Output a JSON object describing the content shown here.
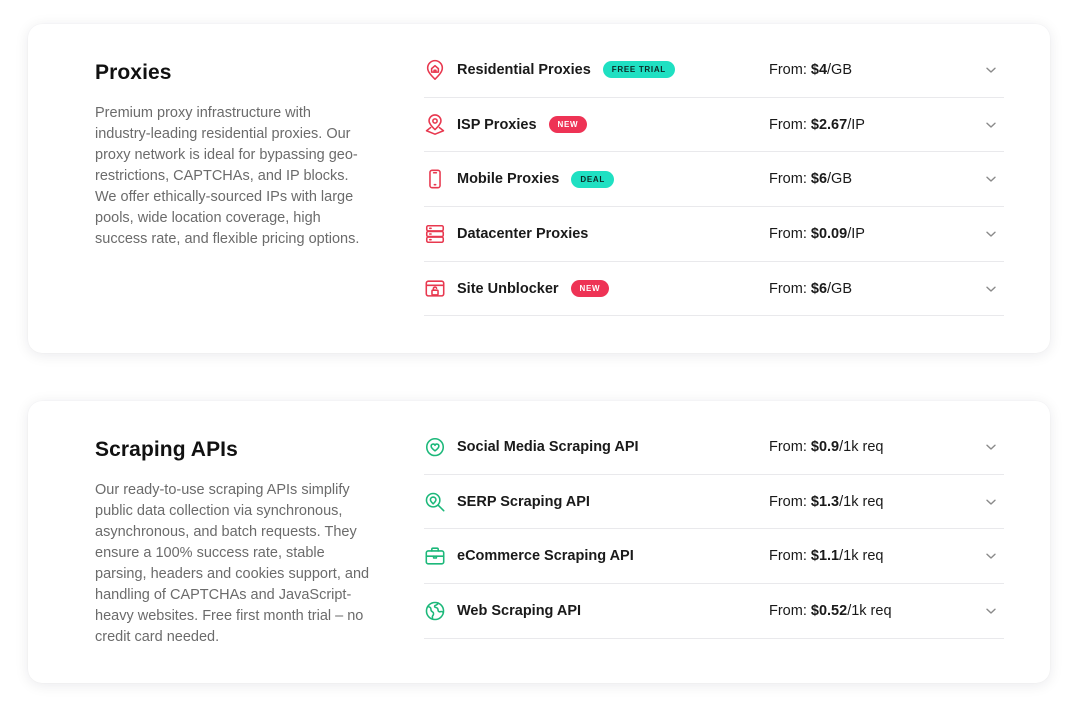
{
  "colors": {
    "proxy_icon": "#e8384f",
    "api_icon": "#1cb87a",
    "badge_teal": "#1fe0c2",
    "badge_red": "#ee3355",
    "chevron": "#8a8a8a"
  },
  "proxies": {
    "title": "Proxies",
    "description": "Premium proxy infrastructure with industry-leading residential proxies. Our proxy network is ideal for bypassing geo-restrictions, CAPTCHAs, and IP blocks. We offer ethically-sourced IPs with large pools, wide location coverage, high success rate, and flexible pricing options.",
    "items": [
      {
        "name": "Residential Proxies",
        "icon": "home-pin-icon",
        "badge": "FREE TRIAL",
        "badge_color": "teal",
        "price_prefix": "From: ",
        "price_amount": "$4",
        "price_unit": "/GB"
      },
      {
        "name": "ISP Proxies",
        "icon": "location-pin-icon",
        "badge": "NEW",
        "badge_color": "red",
        "price_prefix": "From: ",
        "price_amount": "$2.67",
        "price_unit": "/IP"
      },
      {
        "name": "Mobile Proxies",
        "icon": "mobile-phone-icon",
        "badge": "DEAL",
        "badge_color": "teal",
        "price_prefix": "From: ",
        "price_amount": "$6",
        "price_unit": "/GB"
      },
      {
        "name": "Datacenter Proxies",
        "icon": "server-stack-icon",
        "badge": "",
        "badge_color": "",
        "price_prefix": "From: ",
        "price_amount": "$0.09",
        "price_unit": "/IP"
      },
      {
        "name": "Site Unblocker",
        "icon": "unlock-browser-icon",
        "badge": "NEW",
        "badge_color": "red",
        "price_prefix": "From: ",
        "price_amount": "$6",
        "price_unit": "/GB"
      }
    ]
  },
  "apis": {
    "title": "Scraping APIs",
    "description": "Our ready-to-use scraping APIs simplify public data collection via synchronous, asynchronous, and batch requests. They ensure a 100% success rate, stable parsing, headers and cookies support, and handling of CAPTCHAs and JavaScript-heavy websites. Free first month trial – no credit card needed.",
    "items": [
      {
        "name": "Social Media Scraping API",
        "icon": "heart-chat-icon",
        "price_prefix": "From: ",
        "price_amount": "$0.9",
        "price_unit": "/1k req"
      },
      {
        "name": "SERP Scraping API",
        "icon": "search-pin-icon",
        "price_prefix": "From: ",
        "price_amount": "$1.3",
        "price_unit": "/1k req"
      },
      {
        "name": "eCommerce Scraping API",
        "icon": "briefcase-icon",
        "price_prefix": "From: ",
        "price_amount": "$1.1",
        "price_unit": "/1k req"
      },
      {
        "name": "Web Scraping API",
        "icon": "globe-icon",
        "price_prefix": "From: ",
        "price_amount": "$0.52",
        "price_unit": "/1k req"
      }
    ]
  }
}
